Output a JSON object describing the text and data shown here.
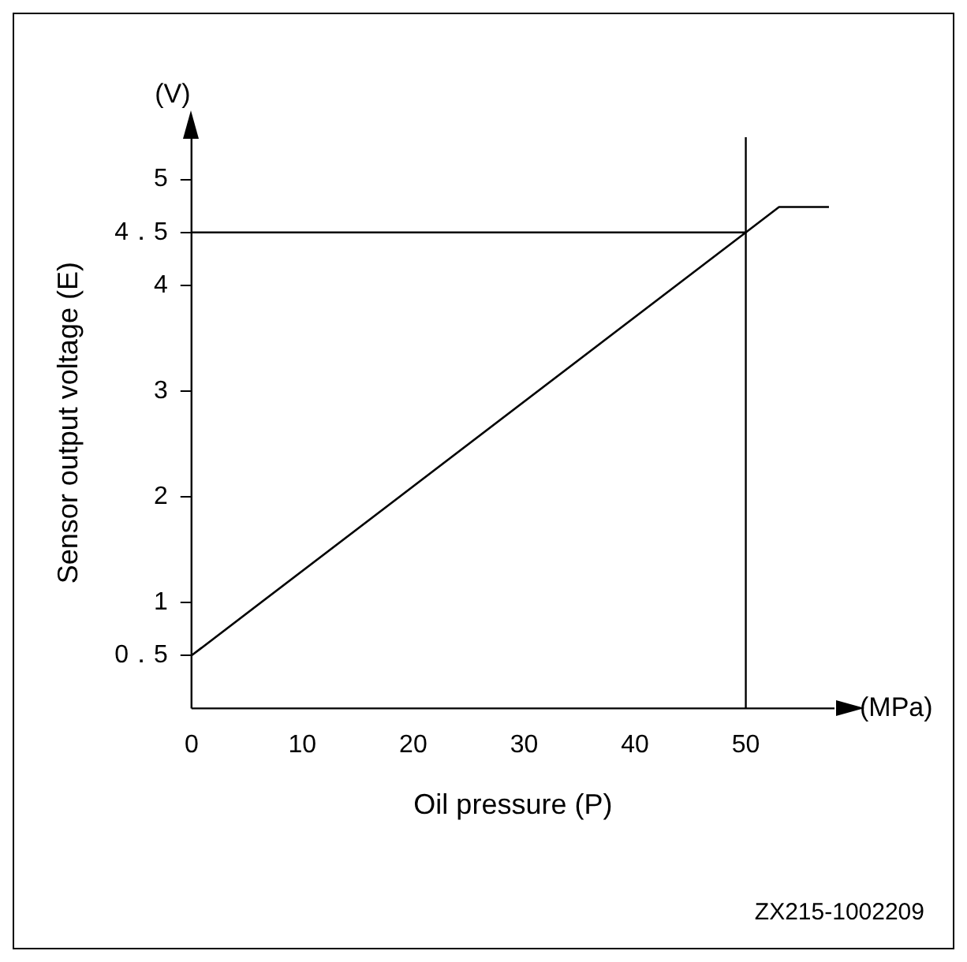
{
  "chart_data": {
    "type": "line",
    "xlabel": "Oil pressure (P)",
    "ylabel": "Sensor output voltage (E)",
    "annotations": [
      "(V)",
      "(MPa)",
      "ZX215-1002209"
    ],
    "series": [
      {
        "color": "#000000",
        "x": [
          0,
          50,
          53,
          57.5
        ],
        "values": [
          0.5,
          4.5,
          4.74,
          4.74
        ]
      }
    ],
    "xlim": [
      0,
      58
    ],
    "xticks": [
      0,
      10,
      20,
      30,
      40,
      50
    ],
    "ylim": [
      0,
      5.4
    ],
    "yticks": [
      {
        "value": 0.5,
        "label": "0．5"
      },
      1,
      2,
      3,
      4,
      {
        "value": 4.5,
        "label": "4．5"
      },
      5
    ],
    "ref_lines": [
      {
        "axis": "y",
        "value": 4.5,
        "color": "#000000"
      },
      {
        "axis": "x",
        "value": 50,
        "color": "#000000"
      }
    ],
    "grid": false,
    "legend": false,
    "marker": "none",
    "line_style": "solid"
  }
}
